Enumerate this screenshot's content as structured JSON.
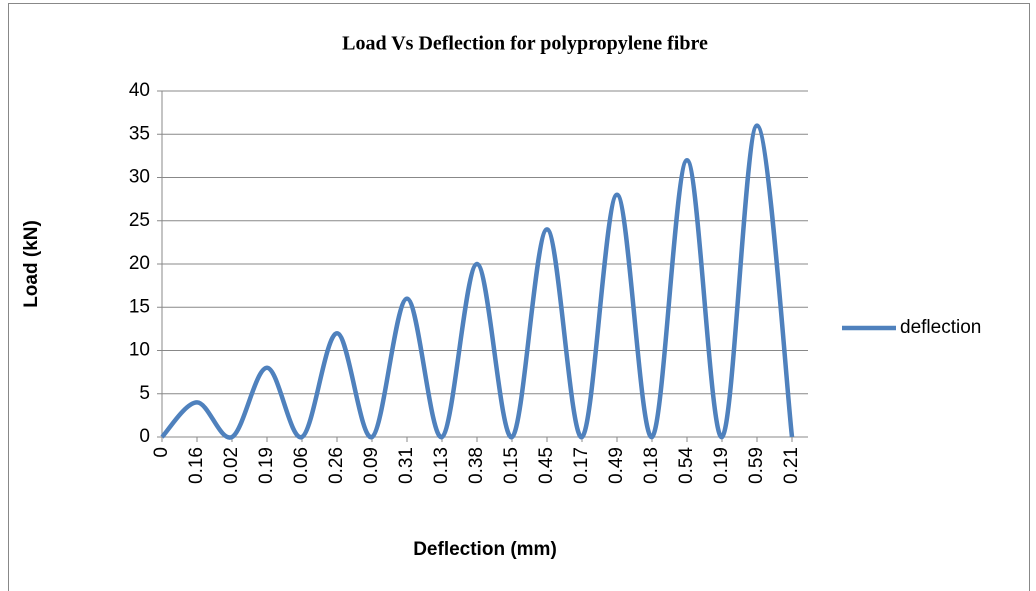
{
  "chart_data": {
    "type": "line",
    "title": "Load Vs Deflection for polypropylene fibre",
    "x_label": "Deflection (mm)",
    "y_label": "Load (kN)",
    "categories": [
      "0",
      "0.16",
      "0.02",
      "0.19",
      "0.06",
      "0.26",
      "0.09",
      "0.31",
      "0.13",
      "0.38",
      "0.15",
      "0.45",
      "0.17",
      "0.49",
      "0.18",
      "0.54",
      "0.19",
      "0.59",
      "0.21"
    ],
    "series": [
      {
        "name": "deflection",
        "color": "#4f81bd",
        "values": [
          0,
          4,
          0,
          8,
          0,
          12,
          0,
          16,
          0,
          20,
          0,
          24,
          0,
          28,
          0,
          32,
          0,
          36,
          0
        ]
      }
    ],
    "ylim": [
      0,
      40
    ],
    "yticks": [
      0,
      5,
      10,
      15,
      20,
      25,
      30,
      35,
      40
    ],
    "grid": true,
    "legend": "right"
  }
}
